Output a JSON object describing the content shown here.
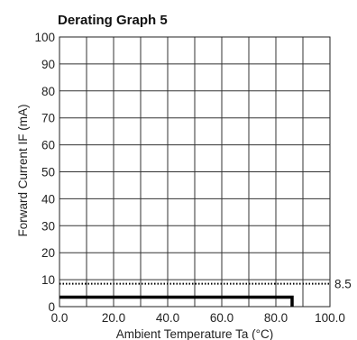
{
  "chart_data": {
    "type": "line",
    "title": "Derating Graph 5",
    "xlabel": "Ambient Temperature Ta (°C)",
    "ylabel": "Forward Current IF (mA)",
    "xlim": [
      0,
      100
    ],
    "ylim": [
      0,
      100
    ],
    "grid": true,
    "x_ticks": [
      "0.0",
      "20.0",
      "40.0",
      "60.0",
      "80.0",
      "100.0"
    ],
    "y_ticks": [
      "0",
      "10",
      "20",
      "30",
      "40",
      "50",
      "60",
      "70",
      "80",
      "90",
      "100"
    ],
    "series": [
      {
        "style": "dotted",
        "x": [
          0,
          100
        ],
        "y": [
          8.5,
          8.5
        ]
      },
      {
        "style": "solid-bold",
        "x": [
          0,
          86,
          86
        ],
        "y": [
          3.5,
          3.5,
          0
        ]
      }
    ],
    "annotations": [
      {
        "text": "8.5",
        "y": 8.5
      }
    ]
  }
}
